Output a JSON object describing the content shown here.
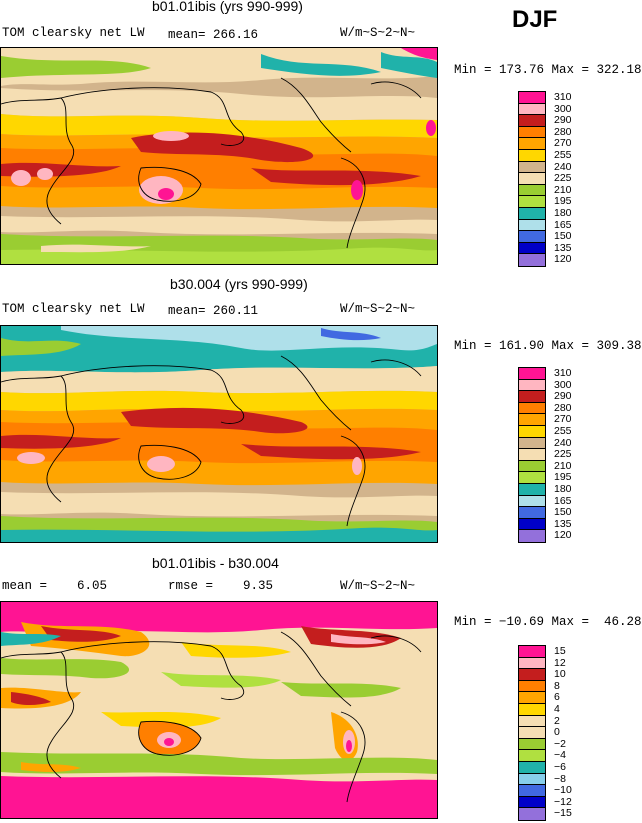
{
  "season": "DJF",
  "panels": [
    {
      "title": "b01.01ibis (yrs 990-999)",
      "left_label": "TOM clearsky net LW",
      "mid_label": "mean= 266.16",
      "units": "W/m~S~2~N~",
      "minmax": "Min = 173.76 Max = 322.18",
      "legend": [
        "310",
        "300",
        "290",
        "280",
        "270",
        "255",
        "240",
        "225",
        "210",
        "195",
        "180",
        "165",
        "150",
        "135",
        "120"
      ]
    },
    {
      "title": "b30.004 (yrs 990-999)",
      "left_label": "TOM clearsky net LW",
      "mid_label": "mean= 260.11",
      "units": "W/m~S~2~N~",
      "minmax": "Min = 161.90 Max = 309.38",
      "legend": [
        "310",
        "300",
        "290",
        "280",
        "270",
        "255",
        "240",
        "225",
        "210",
        "195",
        "180",
        "165",
        "150",
        "135",
        "120"
      ]
    },
    {
      "title": "b01.01ibis - b30.004",
      "left_label": "mean =    6.05",
      "mid_label": "rmse =    9.35",
      "units": "W/m~S~2~N~",
      "minmax": "Min = −10.69 Max =  46.28",
      "legend": [
        "15",
        "12",
        "10",
        "8",
        "6",
        "4",
        "2",
        "0",
        "−2",
        "−4",
        "−6",
        "−8",
        "−10",
        "−12",
        "−15"
      ]
    }
  ],
  "colors": {
    "abs": [
      "#ff1493",
      "#ffb6c1",
      "#c41e1e",
      "#ff7f00",
      "#ffa500",
      "#ffd700",
      "#d2b48c",
      "#f5deb3",
      "#9acd32",
      "#b0e040",
      "#20b2aa",
      "#afe0ea",
      "#4169e1",
      "#0000c8",
      "#9370db"
    ],
    "diff": [
      "#ff1493",
      "#ffb6c1",
      "#c41e1e",
      "#ff7f00",
      "#ffa500",
      "#ffd700",
      "#f5deb3",
      "#f5deb3",
      "#9acd32",
      "#b0e040",
      "#20b2aa",
      "#87ceeb",
      "#4169e1",
      "#0000c8",
      "#9370db"
    ]
  }
}
